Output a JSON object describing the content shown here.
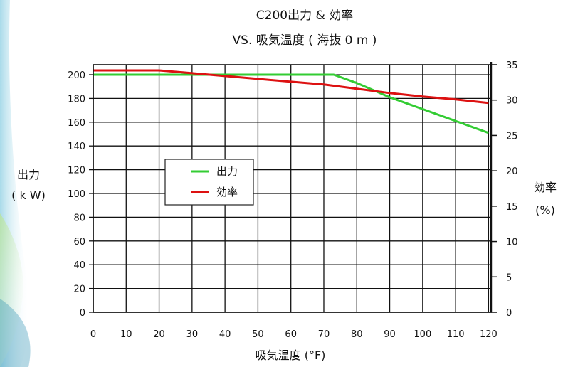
{
  "chart_data": {
    "type": "line",
    "title_line1": "C200出力 & 効率",
    "title_line2": "VS. 吸気温度 ( 海抜 0 m )",
    "xlabel": "吸気温度 (°F)",
    "ylabel_left_line1": "出力",
    "ylabel_left_line2": "( k W)",
    "ylabel_right_line1": "効率",
    "ylabel_right_line2": "(%)",
    "x_ticks": [
      "0",
      "10",
      "20",
      "30",
      "40",
      "50",
      "60",
      "70",
      "80",
      "90",
      "100",
      "110",
      "120"
    ],
    "y_left_ticks": [
      "0",
      "20",
      "40",
      "60",
      "80",
      "100",
      "120",
      "140",
      "160",
      "180",
      "200"
    ],
    "y_right_ticks": [
      "0",
      "5",
      "10",
      "15",
      "20",
      "25",
      "30",
      "35"
    ],
    "xlim": [
      0,
      121
    ],
    "ylim_left": [
      0,
      210
    ],
    "ylim_right": [
      0,
      35
    ],
    "grid": true,
    "legend_position": "center-left",
    "series": [
      {
        "name": "出力",
        "axis": "left",
        "color": "#33cc33",
        "x": [
          0,
          10,
          20,
          30,
          40,
          50,
          60,
          70,
          73,
          80,
          90,
          100,
          110,
          120
        ],
        "y": [
          200,
          200,
          200,
          200,
          200,
          200,
          200,
          200,
          200,
          193,
          181,
          171,
          161,
          151
        ]
      },
      {
        "name": "効率",
        "axis": "right",
        "color": "#dd1111",
        "x": [
          0,
          10,
          20,
          30,
          40,
          50,
          60,
          70,
          80,
          90,
          100,
          110,
          120
        ],
        "y": [
          34.2,
          34.2,
          34.2,
          33.8,
          33.4,
          33.0,
          32.6,
          32.2,
          31.6,
          31.0,
          30.5,
          30.1,
          29.6
        ]
      }
    ]
  }
}
